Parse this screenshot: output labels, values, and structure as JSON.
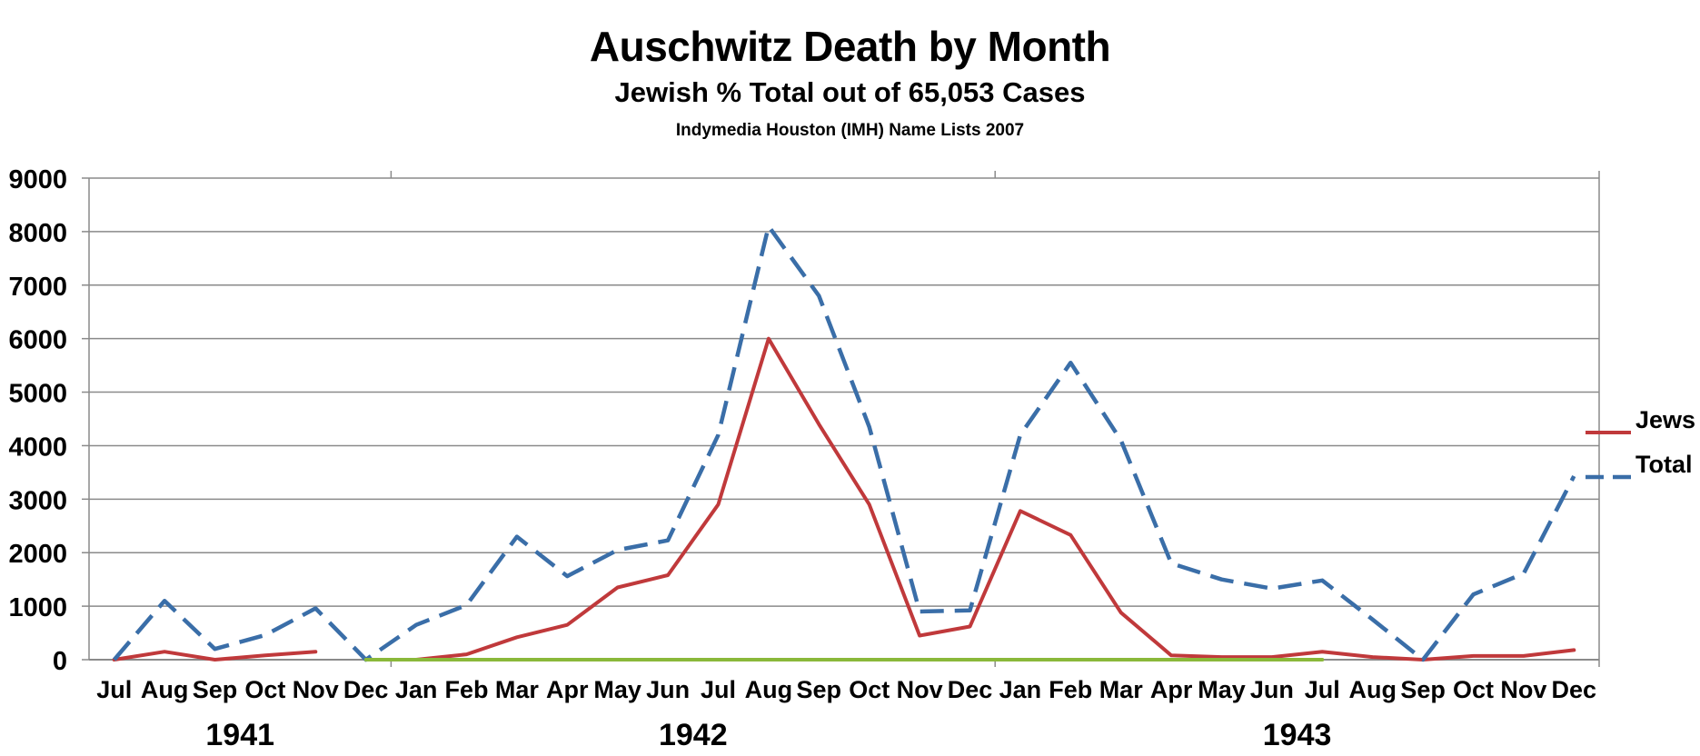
{
  "chart_data": {
    "type": "line",
    "title": "Auschwitz Death by Month",
    "subtitle": "Jewish % Total out of 65,053 Cases",
    "source": "Indymedia Houston (IMH) Name Lists 2007",
    "categories": [
      "Jul",
      "Aug",
      "Sep",
      "Oct",
      "Nov",
      "Dec",
      "Jan",
      "Feb",
      "Mar",
      "Apr",
      "May",
      "Jun",
      "Jul",
      "Aug",
      "Sep",
      "Oct",
      "Nov",
      "Dec",
      "Jan",
      "Feb",
      "Mar",
      "Apr",
      "May",
      "Jun",
      "Jul",
      "Aug",
      "Sep",
      "Oct",
      "Nov",
      "Dec"
    ],
    "years": [
      {
        "label": "1941",
        "from": 0,
        "to": 5
      },
      {
        "label": "1942",
        "from": 6,
        "to": 17
      },
      {
        "label": "1943",
        "from": 18,
        "to": 29
      }
    ],
    "ylim": [
      0,
      9000
    ],
    "yticks": [
      0,
      1000,
      2000,
      3000,
      4000,
      5000,
      6000,
      7000,
      8000,
      9000
    ],
    "grid": true,
    "legend_position": "right",
    "series": [
      {
        "name": "Jews",
        "color": "#c0393b",
        "dash": "solid",
        "values": [
          0,
          150,
          0,
          80,
          150,
          null,
          0,
          100,
          420,
          650,
          1350,
          1580,
          2900,
          6000,
          4400,
          2900,
          450,
          620,
          2780,
          2330,
          880,
          80,
          50,
          50,
          150,
          50,
          0,
          70,
          70,
          180
        ]
      },
      {
        "name": "Total",
        "color": "#3a6ea8",
        "dash": "dashed",
        "values": [
          0,
          1100,
          200,
          460,
          960,
          0,
          650,
          1020,
          2300,
          1560,
          2050,
          2230,
          4200,
          8100,
          6800,
          4350,
          900,
          920,
          4200,
          5550,
          4100,
          1800,
          1500,
          1330,
          1480,
          750,
          0,
          1220,
          1610,
          3430
        ]
      },
      {
        "name": "",
        "color": "#8ab83a",
        "dash": "solid",
        "values": [
          null,
          null,
          null,
          null,
          null,
          0,
          0,
          0,
          0,
          0,
          0,
          0,
          0,
          0,
          0,
          0,
          0,
          0,
          0,
          0,
          0,
          0,
          0,
          0,
          0,
          null,
          null,
          null,
          null,
          null
        ]
      }
    ]
  }
}
